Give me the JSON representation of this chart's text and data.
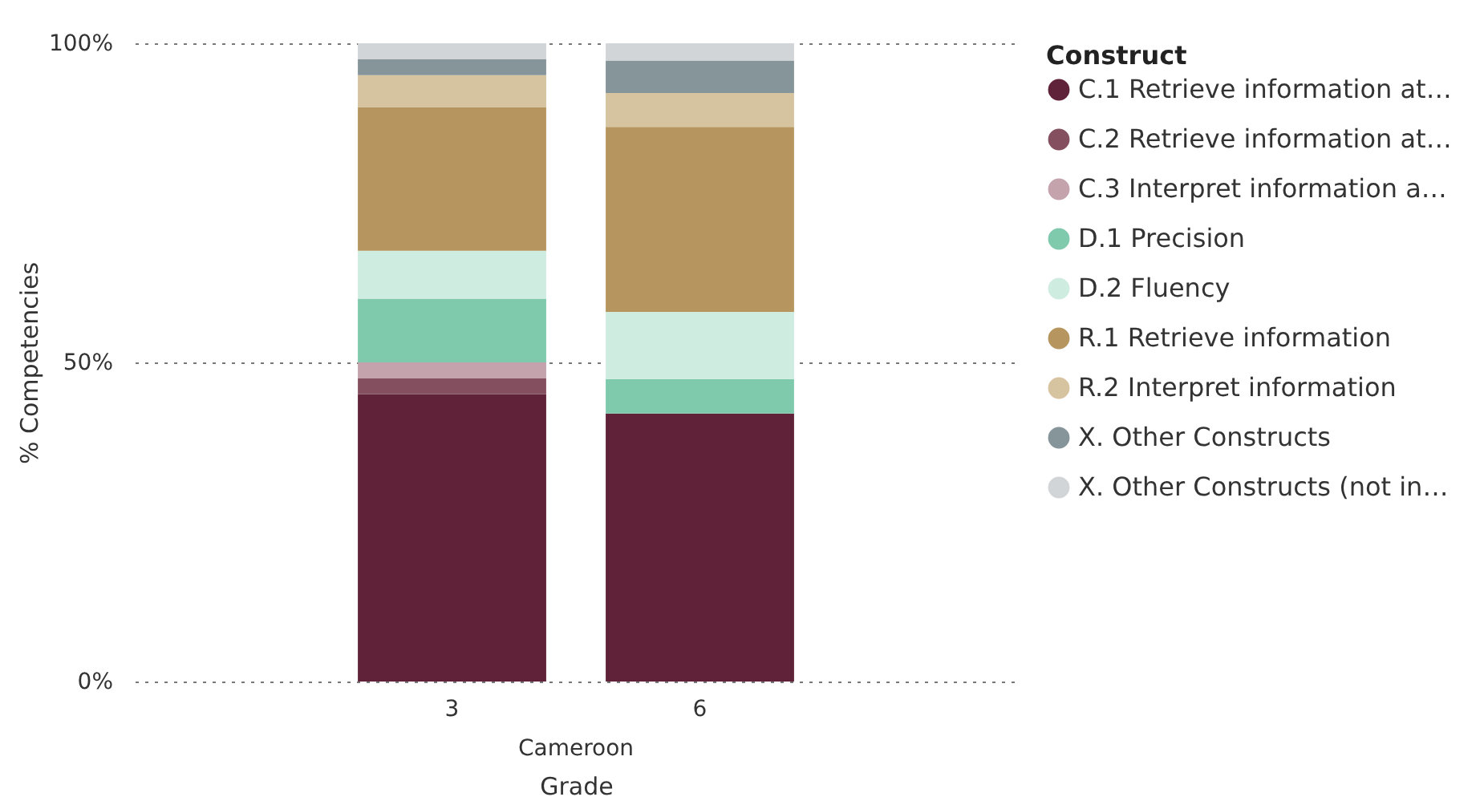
{
  "chart_data": {
    "type": "bar",
    "stacked": true,
    "xlabel": "Grade",
    "ylabel": "% Competencies",
    "legend_title": "Construct",
    "legend": "right",
    "grid": "y",
    "categories": [
      "3",
      "6"
    ],
    "annotations": [
      "Cameroon"
    ],
    "ylim": [
      0,
      100
    ],
    "yticks": [
      {
        "value": 0,
        "label": "0%"
      },
      {
        "value": 50,
        "label": "50%"
      },
      {
        "value": 100,
        "label": "100%"
      }
    ],
    "series": [
      {
        "name": "C.1 Retrieve information at…",
        "color": "#5f2238",
        "values": [
          45,
          42
        ]
      },
      {
        "name": "C.2 Retrieve information at…",
        "color": "#84505f",
        "values": [
          2.5,
          0
        ]
      },
      {
        "name": "C.3 Interpret information a…",
        "color": "#c4a3ad",
        "values": [
          2.5,
          0
        ]
      },
      {
        "name": "D.1 Precision",
        "color": "#7fcaad",
        "values": [
          10,
          5.4
        ]
      },
      {
        "name": "D.2 Fluency",
        "color": "#cfece0",
        "values": [
          7.5,
          10.5
        ]
      },
      {
        "name": "R.1 Retrieve information",
        "color": "#b6965e",
        "values": [
          22.5,
          29
        ]
      },
      {
        "name": "R.2 Interpret information",
        "color": "#d6c3a0",
        "values": [
          5,
          5.3
        ]
      },
      {
        "name": "X. Other Constructs",
        "color": "#86959a",
        "values": [
          2.5,
          5.1
        ]
      },
      {
        "name": "X. Other Constructs (not in…",
        "color": "#d1d5d8",
        "values": [
          2.5,
          2.7
        ]
      }
    ]
  }
}
